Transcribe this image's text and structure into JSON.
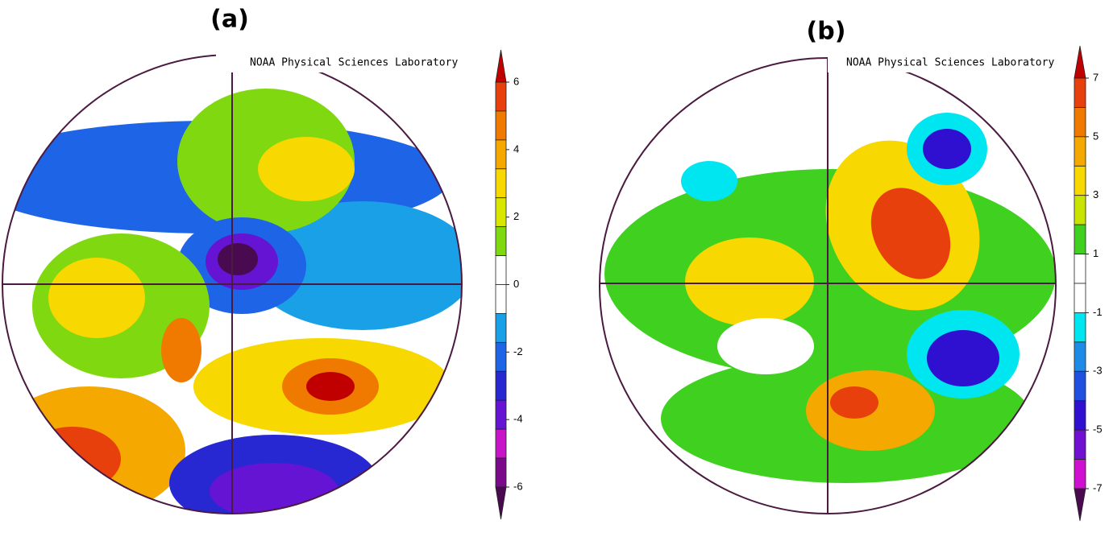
{
  "panels": [
    {
      "label": "(a)",
      "credit": "NOAA Physical Sciences Laboratory",
      "colorbar": {
        "lim": [
          -6,
          6
        ],
        "ticks": [
          6,
          4,
          2,
          0,
          -2,
          -4,
          -6
        ],
        "arrow_top": "#c00000",
        "arrow_bottom": "#4a0a50",
        "bands": [
          "#e8400c",
          "#f07a00",
          "#f5a800",
          "#f7d800",
          "#d8e600",
          "#80d810",
          "#ffffff",
          "#ffffff",
          "#1aa0e6",
          "#1e64e6",
          "#2828d2",
          "#6414d2",
          "#c814c8",
          "#7a0a8a"
        ]
      }
    },
    {
      "label": "(b)",
      "credit": "NOAA Physical Sciences Laboratory",
      "colorbar": {
        "lim": [
          -7,
          7
        ],
        "ticks": [
          7,
          5,
          3,
          1,
          -1,
          -3,
          -5,
          -7
        ],
        "arrow_top": "#c00000",
        "arrow_bottom": "#4a0a50",
        "bands": [
          "#e8400c",
          "#f07a00",
          "#f5a800",
          "#f7d800",
          "#c8e400",
          "#40d020",
          "#ffffff",
          "#ffffff",
          "#00e6f0",
          "#1e8ce6",
          "#2050e0",
          "#3010d0",
          "#7010d0",
          "#d010d0"
        ]
      }
    }
  ]
}
